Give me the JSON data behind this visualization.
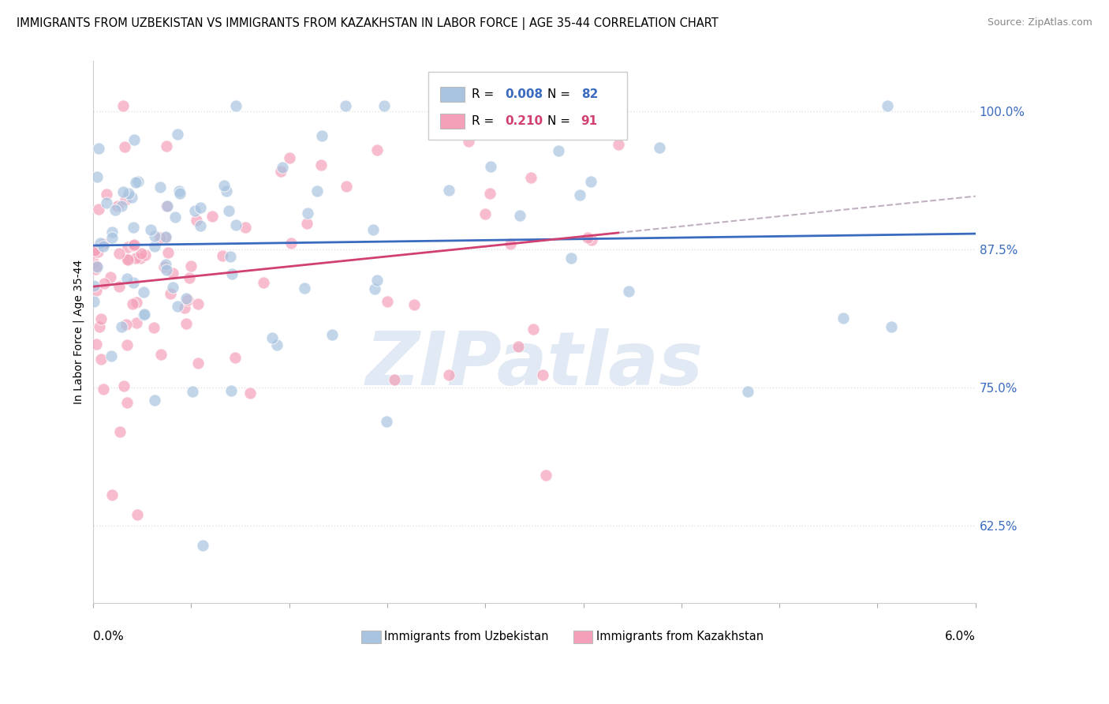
{
  "title": "IMMIGRANTS FROM UZBEKISTAN VS IMMIGRANTS FROM KAZAKHSTAN IN LABOR FORCE | AGE 35-44 CORRELATION CHART",
  "source": "Source: ZipAtlas.com",
  "ylabel": "In Labor Force | Age 35-44",
  "y_ticks": [
    0.625,
    0.75,
    0.875,
    1.0
  ],
  "y_tick_labels": [
    "62.5%",
    "75.0%",
    "87.5%",
    "100.0%"
  ],
  "x_min": 0.0,
  "x_max": 0.06,
  "y_min": 0.555,
  "y_max": 1.045,
  "legend_r1_val": "0.008",
  "legend_n1_val": "82",
  "legend_r2_val": "0.210",
  "legend_n2_val": "91",
  "uzbek_color": "#a8c4e0",
  "kazakh_color": "#f4a0b8",
  "uzbek_line_color": "#3a6bbf",
  "kazakh_line_color": "#d04070",
  "trend_dashed_color": "#c0b0c0",
  "background_color": "#ffffff",
  "scatter_alpha": 0.7,
  "scatter_size": 120,
  "watermark": "ZIPatlas",
  "watermark_color": "#c8d8ec",
  "grid_color": "#e0e0e0",
  "grid_style": ":",
  "title_fontsize": 10.5,
  "source_fontsize": 9,
  "tick_fontsize": 11,
  "ylabel_fontsize": 10
}
